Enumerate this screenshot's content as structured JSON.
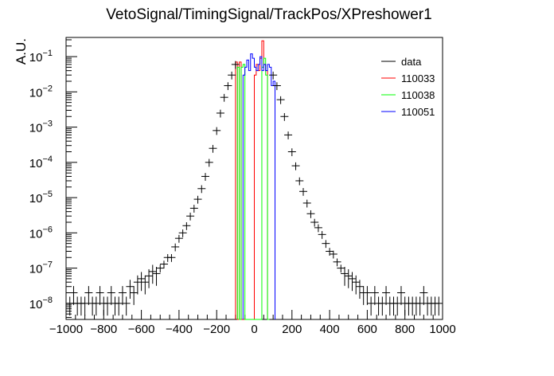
{
  "chart_data": {
    "type": "line",
    "title": "VetoSignal/TimingSignal/TrackPos/XPreshower1",
    "xlabel": "",
    "ylabel": "A.U.",
    "xlim": [
      -1000,
      1000
    ],
    "ylim": [
      3.5e-09,
      0.35
    ],
    "yscale": "log",
    "grid": false,
    "legend_position": "top-right",
    "x_ticks": [
      -1000,
      -800,
      -600,
      -400,
      -200,
      0,
      200,
      400,
      600,
      800,
      1000
    ],
    "x_tick_labels": [
      "−1000",
      "−800",
      "−600",
      "−400",
      "−200",
      "0",
      "200",
      "400",
      "600",
      "800",
      "1000"
    ],
    "y_ticks": [
      {
        "value": 1e-08,
        "base": "10",
        "exp": "−8"
      },
      {
        "value": 1e-07,
        "base": "10",
        "exp": "−7"
      },
      {
        "value": 1e-06,
        "base": "10",
        "exp": "−6"
      },
      {
        "value": 1e-05,
        "base": "10",
        "exp": "−5"
      },
      {
        "value": 0.0001,
        "base": "10",
        "exp": "−4"
      },
      {
        "value": 0.001,
        "base": "10",
        "exp": "−3"
      },
      {
        "value": 0.01,
        "base": "10",
        "exp": "−2"
      },
      {
        "value": 0.1,
        "base": "10",
        "exp": "−1"
      }
    ],
    "data": {
      "name": "data",
      "color": "#000000",
      "x": [
        -980,
        -960,
        -940,
        -920,
        -900,
        -880,
        -860,
        -840,
        -820,
        -800,
        -780,
        -760,
        -740,
        -720,
        -700,
        -680,
        -660,
        -640,
        -620,
        -600,
        -580,
        -560,
        -540,
        -520,
        -500,
        -480,
        -460,
        -440,
        -420,
        -400,
        -380,
        -360,
        -340,
        -320,
        -300,
        -280,
        -260,
        -240,
        -220,
        -200,
        -180,
        -160,
        -140,
        -120,
        -100,
        100,
        120,
        140,
        160,
        180,
        200,
        220,
        240,
        260,
        280,
        300,
        320,
        340,
        360,
        380,
        400,
        420,
        440,
        460,
        480,
        500,
        520,
        540,
        560,
        580,
        600,
        620,
        640,
        660,
        680,
        700,
        720,
        740,
        760,
        780,
        800,
        820,
        840,
        860,
        880,
        900,
        920,
        940,
        960,
        980
      ],
      "y": [
        1e-08,
        2e-08,
        1e-08,
        1e-08,
        1e-08,
        2e-08,
        1e-08,
        1e-08,
        2e-08,
        1e-08,
        1e-08,
        2e-08,
        1e-08,
        1e-08,
        2e-08,
        1e-08,
        3e-08,
        2e-08,
        4e-08,
        5e-08,
        4e-08,
        6e-08,
        8e-08,
        7e-08,
        1e-07,
        1.3e-07,
        2e-07,
        2e-07,
        4e-07,
        7e-07,
        1e-06,
        1.6e-06,
        3e-06,
        5e-06,
        9e-06,
        1.8e-05,
        4e-05,
        0.0001,
        0.00025,
        0.0008,
        0.0025,
        0.007,
        0.015,
        0.03,
        0.06,
        0.03,
        0.015,
        0.006,
        0.002,
        0.0006,
        0.0002,
        8e-05,
        3e-05,
        1.5e-05,
        7e-06,
        3.5e-06,
        2e-06,
        1.4e-06,
        9e-07,
        5e-07,
        3e-07,
        2.5e-07,
        1.5e-07,
        1e-07,
        7e-08,
        6e-08,
        5e-08,
        4e-08,
        3e-08,
        2e-08,
        2e-08,
        1e-08,
        2e-08,
        1e-08,
        1e-08,
        2e-08,
        1e-08,
        1e-08,
        1e-08,
        2e-08,
        1e-08,
        1e-08,
        1e-08,
        1e-08,
        1e-08,
        2e-08,
        1e-08,
        1e-08,
        1e-08,
        1e-08
      ]
    },
    "series": [
      {
        "name": "110033",
        "color": "#ff0000",
        "edges": [
          -100,
          -90,
          -80,
          -70,
          -60,
          0,
          10,
          20,
          30,
          40,
          50,
          60,
          70
        ],
        "values": [
          0.07,
          0,
          0.07,
          0,
          0,
          0.03,
          0.06,
          0.04,
          0.09,
          0.28,
          0.06,
          0.04
        ]
      },
      {
        "name": "110038",
        "color": "#00ff00",
        "edges": [
          -90,
          -80,
          -70,
          -60,
          -50,
          40,
          50,
          60,
          70,
          80
        ],
        "values": [
          0.05,
          0,
          0.05,
          0.06,
          0,
          0.05,
          0.09,
          0.03,
          0
        ]
      },
      {
        "name": "110051",
        "color": "#0000ff",
        "edges": [
          -60,
          -50,
          -40,
          -30,
          -20,
          -10,
          0,
          10,
          20,
          30,
          40,
          50,
          60,
          70,
          80,
          90,
          100,
          110
        ],
        "values": [
          0.03,
          0.05,
          0.08,
          0.04,
          0.12,
          0.09,
          0.05,
          0.04,
          0.06,
          0.1,
          0.04,
          0.06,
          0.04,
          0.06,
          0.05,
          0.015,
          0.02
        ]
      }
    ]
  }
}
